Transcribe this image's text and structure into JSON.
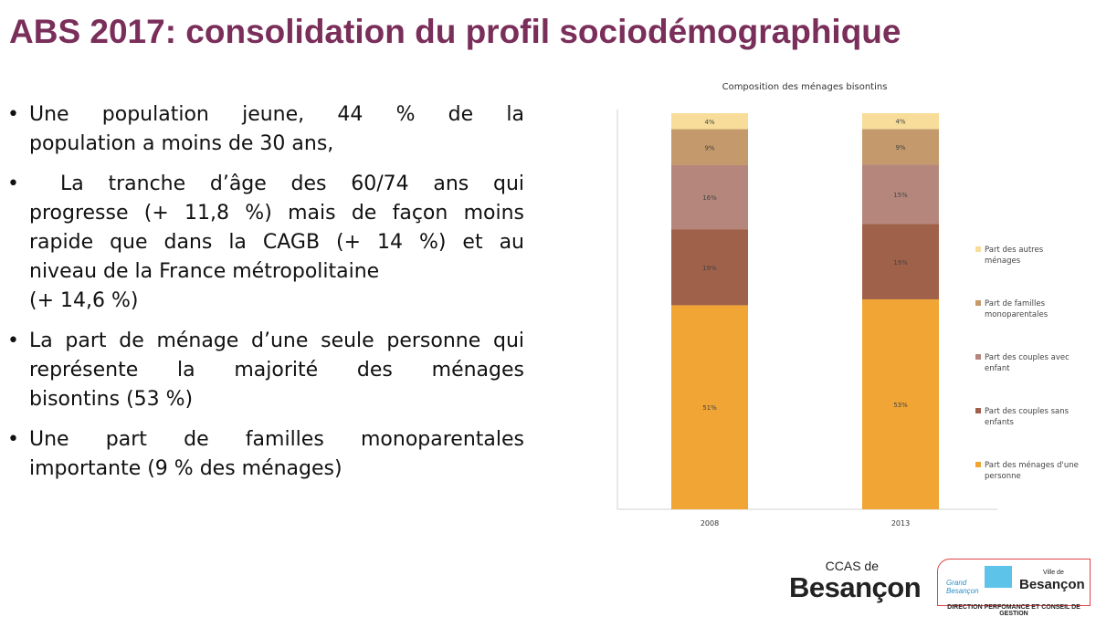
{
  "slide": {
    "title": "ABS 2017: consolidation du profil sociodémographique"
  },
  "bullets": [
    {
      "lines": [
        "Une population jeune, 44 % de la",
        "population a moins de 30 ans,"
      ]
    },
    {
      "lines": [
        "La tranche d’âge des 60/74 ans qui",
        "progresse (+ 11,8 %) mais de façon moins",
        "rapide que dans la CAGB (+ 14 %) et au",
        "niveau de la France métropolitaine",
        "(+ 14,6 %)"
      ]
    },
    {
      "lines": [
        "La part de ménage d’une seule personne qui",
        "représente la majorité des ménages",
        "bisontins (53 %)"
      ]
    },
    {
      "lines": [
        "Une part de familles monoparentales",
        "importante (9 % des ménages)"
      ]
    }
  ],
  "bullet_marker": "•",
  "colors": {
    "title": "#7a2e5a",
    "series": [
      "#f0a535",
      "#a0614a",
      "#b5877c",
      "#c49a6c",
      "#f7dd99"
    ]
  },
  "chart_data": {
    "type": "bar",
    "stacked": true,
    "title": "Composition des ménages bisontins",
    "categories": [
      "2008",
      "2013"
    ],
    "series": [
      {
        "name": "Part des ménages d'une personne",
        "values": [
          51,
          53
        ],
        "labels": [
          "51%",
          "53%"
        ]
      },
      {
        "name": "Part des couples sans enfants",
        "values": [
          19,
          19
        ],
        "labels": [
          "19%",
          "19%"
        ]
      },
      {
        "name": "Part des couples avec enfant",
        "values": [
          16,
          15
        ],
        "labels": [
          "16%",
          "15%"
        ]
      },
      {
        "name": "Part de familles monoparentales",
        "values": [
          9,
          9
        ],
        "labels": [
          "9%",
          "9%"
        ]
      },
      {
        "name": "Part des autres ménages",
        "values": [
          4,
          4
        ],
        "labels": [
          "4%",
          "4%"
        ]
      }
    ],
    "legend_position": "right",
    "grid": false
  },
  "logos": {
    "ccas_small": "CCAS de",
    "ccas_big": "Besançon",
    "gb_text": "Grand\nBesançon",
    "ville_de": "Ville de",
    "besancon": "Besançon",
    "direction": "DIRECTION PERFOMANCE ET CONSEIL DE GESTION"
  }
}
